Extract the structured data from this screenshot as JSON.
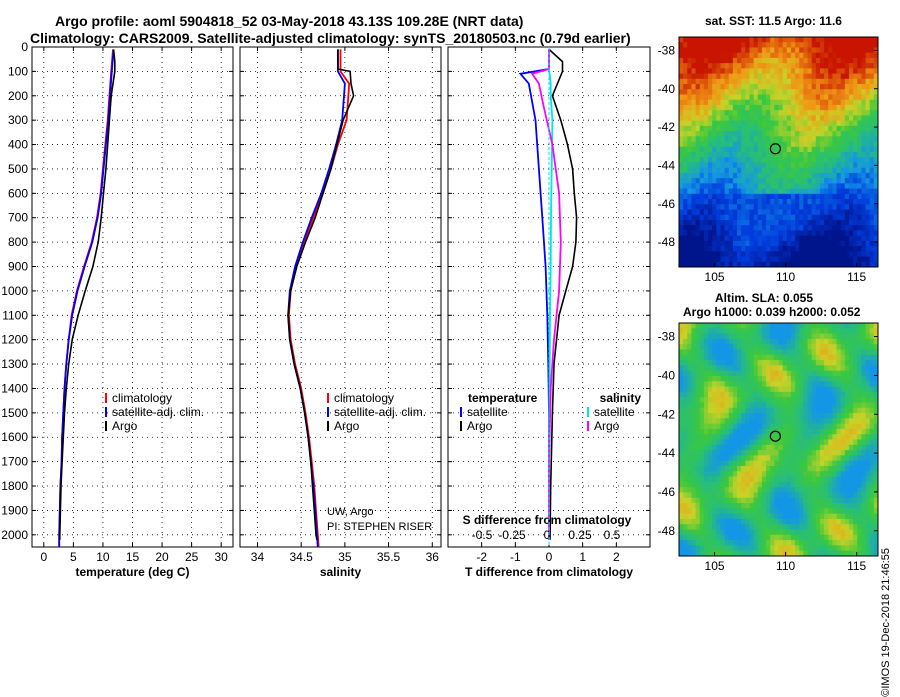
{
  "header": {
    "title_line1": "Argo profile: aoml 5904818_52 03-May-2018 43.13S 109.28E (NRT data)",
    "title_line2": "Climatology: CARS2009. Satellite-adjusted climatology: synTS_20180503.nc (0.79d earlier)"
  },
  "footer_note": "©IMOS 19-Dec-2018 21:46:55",
  "colors": {
    "climatology": "#ff0000",
    "satellite": "#0000ff",
    "argo": "#000000",
    "sat_salinity": "#00e5e5",
    "argo_salinity": "#ff00ff"
  },
  "chart_data": [
    {
      "type": "line",
      "xlabel": "temperature (deg C)",
      "ylabel": "",
      "xlim": [
        -2,
        32
      ],
      "ylim": [
        2050,
        0
      ],
      "xticks": [
        "0",
        "5",
        "10",
        "15",
        "20",
        "25",
        "30"
      ],
      "yticks": [
        "0",
        "100",
        "200",
        "300",
        "400",
        "500",
        "600",
        "700",
        "800",
        "900",
        "1000",
        "1100",
        "1200",
        "1300",
        "1400",
        "1500",
        "1600",
        "1700",
        "1800",
        "1900",
        "2000"
      ],
      "grid": true,
      "legend": {
        "position": "bottom-center",
        "entries": [
          "climatology",
          "satellite-adj. clim.",
          "Argo"
        ]
      },
      "series": [
        {
          "name": "climatology",
          "color": "#ff0000",
          "x": [
            11.7,
            11.4,
            11.1,
            10.8,
            10.4,
            10.0,
            9.6,
            9.0,
            8.1,
            6.8,
            5.6,
            4.7,
            4.2,
            3.8,
            3.5,
            3.3,
            3.1,
            3.0,
            2.8,
            2.7,
            2.6,
            2.6
          ],
          "y": [
            10,
            100,
            200,
            300,
            400,
            500,
            600,
            700,
            800,
            900,
            1000,
            1100,
            1200,
            1300,
            1400,
            1500,
            1600,
            1700,
            1800,
            1900,
            2000,
            2050
          ]
        },
        {
          "name": "satellite-adj. clim.",
          "color": "#0000ff",
          "x": [
            11.8,
            11.5,
            11.2,
            10.9,
            10.5,
            10.1,
            9.7,
            9.1,
            8.2,
            6.9,
            5.7,
            4.8,
            4.2,
            3.8,
            3.5,
            3.3,
            3.1,
            3.0,
            2.8,
            2.7,
            2.6,
            2.6
          ],
          "y": [
            10,
            100,
            200,
            300,
            400,
            500,
            600,
            700,
            800,
            900,
            1000,
            1100,
            1200,
            1300,
            1400,
            1500,
            1600,
            1700,
            1800,
            1900,
            2000,
            2050
          ]
        },
        {
          "name": "Argo",
          "color": "#000000",
          "x": [
            11.8,
            12.0,
            12.0,
            11.4,
            11.1,
            10.8,
            10.5,
            10.1,
            9.7,
            9.2,
            8.3,
            7.0,
            5.8,
            4.8,
            4.2,
            3.8,
            3.5,
            3.3,
            3.1,
            2.9,
            2.8,
            2.7,
            2.7
          ],
          "y": [
            10,
            60,
            100,
            200,
            300,
            400,
            500,
            600,
            700,
            800,
            900,
            1000,
            1100,
            1200,
            1300,
            1400,
            1500,
            1600,
            1700,
            1800,
            1900,
            2000,
            2020
          ]
        }
      ]
    },
    {
      "type": "line",
      "xlabel": "salinity",
      "xlim": [
        33.8,
        36.1
      ],
      "ylim": [
        2050,
        0
      ],
      "xticks": [
        "34",
        "34.5",
        "35",
        "35.5",
        "36"
      ],
      "grid": true,
      "legend": {
        "position": "bottom-center",
        "entries": [
          "climatology",
          "satellite-adj. clim.",
          "Argo"
        ]
      },
      "annotation": [
        "UW, Argo",
        "PI: STEPHEN RISER"
      ],
      "series": [
        {
          "name": "climatology",
          "color": "#ff0000",
          "x": [
            34.95,
            34.95,
            35.05,
            35.02,
            34.92,
            34.84,
            34.75,
            34.64,
            34.53,
            34.44,
            34.38,
            34.36,
            34.38,
            34.43,
            34.5,
            34.55,
            34.59,
            34.62,
            34.65,
            34.67,
            34.69,
            34.7
          ],
          "y": [
            10,
            100,
            150,
            300,
            400,
            500,
            600,
            700,
            800,
            900,
            1000,
            1100,
            1200,
            1300,
            1400,
            1500,
            1600,
            1700,
            1800,
            1900,
            2000,
            2050
          ]
        },
        {
          "name": "satellite-adj. clim.",
          "color": "#0000ff",
          "x": [
            34.92,
            34.92,
            35.0,
            34.97,
            34.9,
            34.82,
            34.73,
            34.62,
            34.52,
            34.43,
            34.37,
            34.35,
            34.37,
            34.42,
            34.49,
            34.54,
            34.58,
            34.61,
            34.64,
            34.66,
            34.68,
            34.69
          ],
          "y": [
            10,
            100,
            150,
            300,
            400,
            500,
            600,
            700,
            800,
            900,
            1000,
            1100,
            1200,
            1300,
            1400,
            1500,
            1600,
            1700,
            1800,
            1900,
            2000,
            2050
          ]
        },
        {
          "name": "Argo",
          "color": "#000000",
          "x": [
            34.92,
            34.92,
            35.06,
            35.07,
            35.1,
            34.98,
            34.91,
            34.84,
            34.75,
            34.66,
            34.55,
            34.45,
            34.38,
            34.35,
            34.37,
            34.42,
            34.49,
            34.54,
            34.58,
            34.61,
            34.63,
            34.65,
            34.67,
            34.68
          ],
          "y": [
            10,
            90,
            100,
            150,
            200,
            300,
            400,
            500,
            600,
            700,
            800,
            900,
            1000,
            1100,
            1200,
            1300,
            1400,
            1500,
            1600,
            1700,
            1800,
            1900,
            2000,
            2020
          ]
        }
      ]
    },
    {
      "type": "line",
      "xlabel": "T difference from climatology",
      "xlabel_secondary": "S difference from climatology",
      "xlim": [
        -3,
        3
      ],
      "ylim": [
        2050,
        0
      ],
      "xticks": [
        "-2",
        "-1",
        "0",
        "1",
        "2"
      ],
      "xticks_secondary": [
        "-0.5",
        "-0.25",
        "0",
        "0.25",
        "0.5"
      ],
      "grid": true,
      "legend": {
        "position": "bottom",
        "entries": [
          "temperature",
          "satellite",
          "Argo",
          "salinity",
          "satellite",
          "Argo"
        ]
      },
      "series": [
        {
          "name": "satellite",
          "color": "#0000ff",
          "x": [
            0,
            0,
            -0.85,
            -0.6,
            -0.4,
            -0.3,
            -0.2,
            -0.1,
            -0.05,
            -0.02,
            0,
            0,
            0
          ],
          "y": [
            10,
            90,
            110,
            150,
            300,
            500,
            700,
            900,
            1100,
            1300,
            1500,
            1800,
            2020
          ]
        },
        {
          "name": "Argo",
          "color": "#000000",
          "x": [
            0,
            0.4,
            0.4,
            0.1,
            0.35,
            0.55,
            0.7,
            0.75,
            0.82,
            0.8,
            0.7,
            0.5,
            0.3,
            0.15,
            0.1,
            0.05,
            0.03
          ],
          "y": [
            10,
            60,
            100,
            200,
            300,
            400,
            500,
            600,
            700,
            800,
            900,
            1000,
            1100,
            1300,
            1500,
            1800,
            2020
          ]
        },
        {
          "name": "satellite",
          "color": "#00e5e5",
          "x": [
            0,
            0,
            0.05,
            0.05,
            0.1,
            0.08,
            0.06,
            0.05,
            0.03,
            0.02,
            0.01,
            0,
            0
          ],
          "y": [
            10,
            90,
            150,
            200,
            300,
            500,
            700,
            900,
            1100,
            1300,
            1500,
            1800,
            2020
          ]
        },
        {
          "name": "Argo",
          "color": "#ff00ff",
          "x": [
            0,
            0,
            -0.5,
            -0.3,
            -0.15,
            0.1,
            0.3,
            0.35,
            0.3,
            0.15,
            0.05,
            0,
            0
          ],
          "y": [
            10,
            90,
            110,
            150,
            250,
            400,
            600,
            800,
            1000,
            1200,
            1400,
            1700,
            2020
          ]
        }
      ]
    },
    {
      "type": "heatmap",
      "title": "sat. SST: 11.5 Argo: 11.6",
      "xticks": [
        "105",
        "110",
        "115"
      ],
      "yticks": [
        "-38",
        "-40",
        "-42",
        "-44",
        "-46",
        "-48"
      ],
      "xlim": [
        102.5,
        116.5
      ],
      "ylim": [
        -49.3,
        -37.3
      ],
      "marker": {
        "lon": 109.28,
        "lat": -43.13
      }
    },
    {
      "type": "heatmap",
      "title": "Altim. SLA: 0.055",
      "subtitle": "Argo h1000: 0.039 h2000: 0.052",
      "xticks": [
        "105",
        "110",
        "115"
      ],
      "yticks": [
        "-38",
        "-40",
        "-42",
        "-44",
        "-46",
        "-48"
      ],
      "xlim": [
        102.5,
        116.5
      ],
      "ylim": [
        -49.3,
        -37.3
      ],
      "marker": {
        "lon": 109.28,
        "lat": -43.13
      }
    }
  ]
}
